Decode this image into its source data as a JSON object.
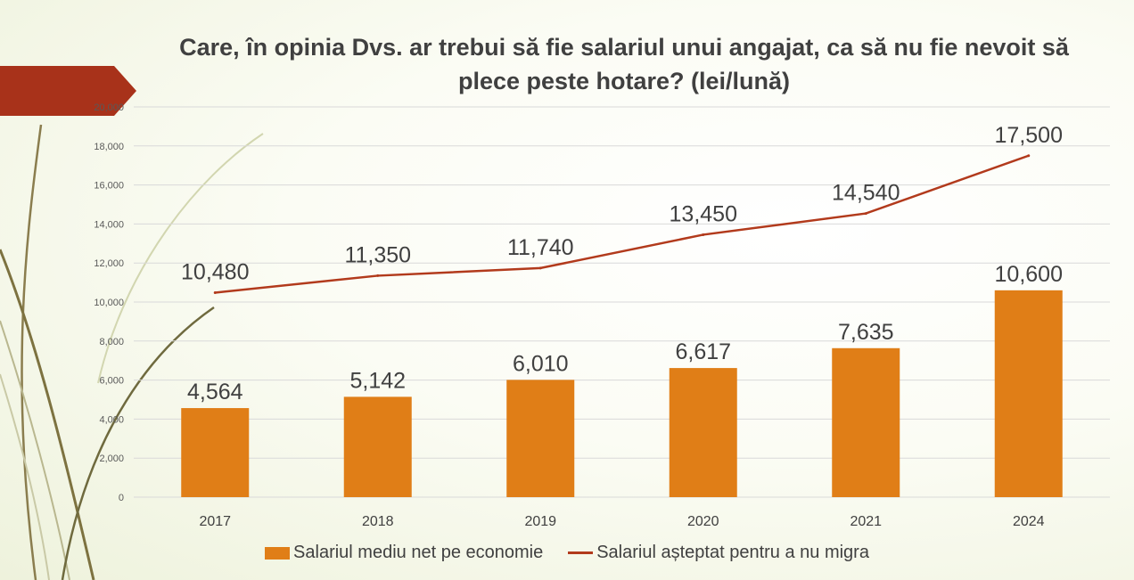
{
  "colors": {
    "bar": "#E07E17",
    "line": "#B23A1C",
    "accent_banner": "#A8321A",
    "grid": "#D9D9D9",
    "text": "#404040"
  },
  "chart_data": {
    "type": "bar",
    "title": "Care, în opinia Dvs. ar trebui să fie salariul unui angajat, ca să nu fie nevoit să plece peste hotare? (lei/lună)",
    "categories": [
      "2017",
      "2018",
      "2019",
      "2020",
      "2021",
      "2024"
    ],
    "series": [
      {
        "name": "Salariul mediu net pe economie",
        "type": "bar",
        "values": [
          4564,
          5142,
          6010,
          6617,
          7635,
          10600
        ],
        "labels": [
          "4,564",
          "5,142",
          "6,010",
          "6,617",
          "7,635",
          "10,600"
        ]
      },
      {
        "name": "Salariul așteptat pentru a nu migra",
        "type": "line",
        "values": [
          10480,
          11350,
          11740,
          13450,
          14540,
          17500
        ],
        "labels": [
          "10,480",
          "11,350",
          "11,740",
          "13,450",
          "14,540",
          "17,500"
        ]
      }
    ],
    "ylim": [
      0,
      20000
    ],
    "yticks": [
      "0",
      "2,000",
      "4,000",
      "6,000",
      "8,000",
      "10,000",
      "12,000",
      "14,000",
      "16,000",
      "18,000",
      "20,000"
    ],
    "grid": true,
    "legend": "bottom"
  }
}
